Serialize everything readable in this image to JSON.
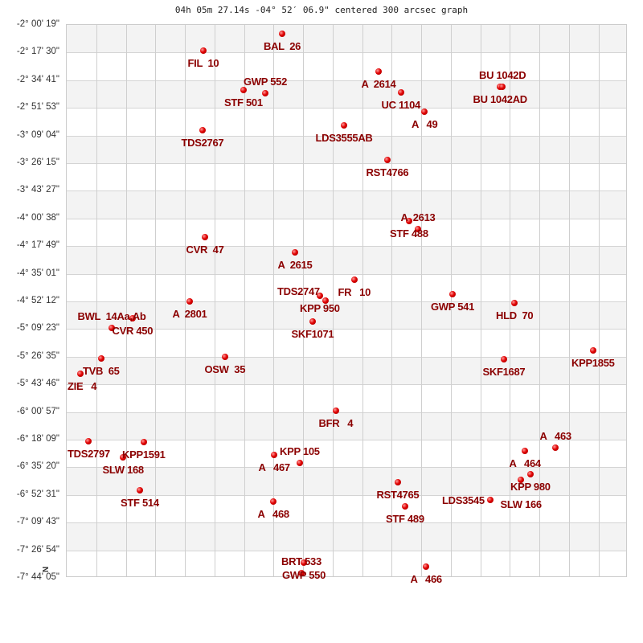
{
  "chart_data": {
    "type": "scatter",
    "title": "04h 05m 27.14s -04° 52′ 06.9\" centered 300 arcsec graph",
    "ytick_labels": [
      "-2° 00' 19\"",
      "-2° 17' 30\"",
      "-2° 34' 41\"",
      "-2° 51' 53\"",
      "-3° 09' 04\"",
      "-3° 26' 15\"",
      "-3° 43' 27\"",
      "-4° 00' 38\"",
      "-4° 17' 49\"",
      "-4° 35' 01\"",
      "-4° 52' 12\"",
      "-5° 09' 23\"",
      "-5° 26' 35\"",
      "-5° 43' 46\"",
      "-6° 00' 57\"",
      "-6° 18' 09\"",
      "-6° 35' 20\"",
      "-6° 52' 31\"",
      "-7° 09' 43\"",
      "-7° 26' 54\"",
      "-7° 44' 05\""
    ],
    "orientation_marker": "N",
    "grid": true,
    "point_color": "#dd0000",
    "label_color": "#8b0000",
    "stars": [
      "BAL  26",
      "FIL  10",
      "A  2614",
      "BU 1042AD",
      "BU 1042D",
      "STF 501",
      "GWP 552",
      "UC 1104",
      "A   49",
      "LDS3555AB",
      "TDS2767",
      "RST4766",
      "STF 488",
      "A  2613",
      "CVR  47",
      "A  2615",
      "FR   10",
      "GWP 541",
      "KPP 950",
      "TDS2747",
      "HLD  70",
      "A  2801",
      "SKF1071",
      "CVR 450",
      "BWL  14Aa,Ab",
      "KPP1855",
      "SKF1687",
      "OSW  35",
      "TVB  65",
      "ZIE   4",
      "BFR   4",
      "TDS2797",
      "KPP1591",
      "SLW 168",
      "A   464",
      "A   463",
      "A   467",
      "KPP 105",
      "KPP 980",
      "SLW 166",
      "RST4765",
      "STF 514",
      "LDS3545",
      "A   468",
      "STF 489",
      "GWP 550",
      "BRT 533",
      "A   466"
    ]
  }
}
